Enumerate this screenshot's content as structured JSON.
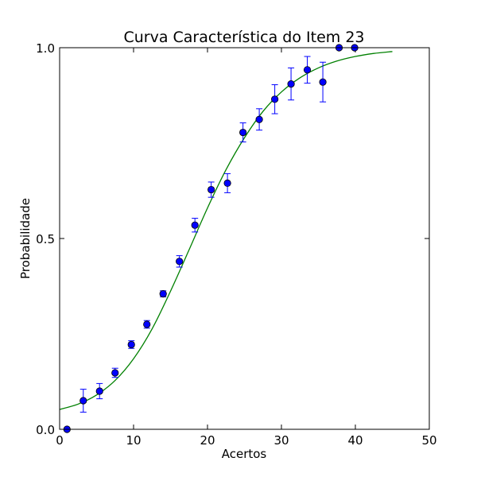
{
  "chart_data": {
    "type": "scatter",
    "title": "Curva Característica do Item 23",
    "xlabel": "Acertos",
    "ylabel": "Probabilidade",
    "xlim": [
      0,
      50
    ],
    "ylim": [
      0,
      1
    ],
    "x_ticks": [
      {
        "value": 0,
        "label": "0"
      },
      {
        "value": 10,
        "label": "10"
      },
      {
        "value": 20,
        "label": "20"
      },
      {
        "value": 30,
        "label": "30"
      },
      {
        "value": 40,
        "label": "40"
      },
      {
        "value": 50,
        "label": "50"
      }
    ],
    "y_ticks": [
      {
        "value": 0.0,
        "label": "0.0"
      },
      {
        "value": 0.5,
        "label": "0.5"
      },
      {
        "value": 1.0,
        "label": "1.0"
      }
    ],
    "grid": false,
    "series": [
      {
        "kind": "points_with_error_bars",
        "color": "#0000ff",
        "points": [
          {
            "x": 1.0,
            "y": 0.0,
            "err": 0.0
          },
          {
            "x": 3.2,
            "y": 0.075,
            "err": 0.03
          },
          {
            "x": 5.4,
            "y": 0.1,
            "err": 0.02
          },
          {
            "x": 7.5,
            "y": 0.148,
            "err": 0.012
          },
          {
            "x": 9.7,
            "y": 0.222,
            "err": 0.01
          },
          {
            "x": 11.8,
            "y": 0.275,
            "err": 0.01
          },
          {
            "x": 14.0,
            "y": 0.355,
            "err": 0.008
          },
          {
            "x": 16.2,
            "y": 0.44,
            "err": 0.015
          },
          {
            "x": 18.3,
            "y": 0.535,
            "err": 0.018
          },
          {
            "x": 20.5,
            "y": 0.628,
            "err": 0.02
          },
          {
            "x": 22.7,
            "y": 0.645,
            "err": 0.025
          },
          {
            "x": 24.8,
            "y": 0.778,
            "err": 0.025
          },
          {
            "x": 27.0,
            "y": 0.812,
            "err": 0.028
          },
          {
            "x": 29.1,
            "y": 0.865,
            "err": 0.038
          },
          {
            "x": 31.3,
            "y": 0.905,
            "err": 0.042
          },
          {
            "x": 33.5,
            "y": 0.942,
            "err": 0.035
          },
          {
            "x": 35.6,
            "y": 0.91,
            "err": 0.052
          },
          {
            "x": 37.8,
            "y": 1.0,
            "err": 0.0
          },
          {
            "x": 39.9,
            "y": 1.0,
            "err": 0.0
          }
        ]
      },
      {
        "kind": "fitted_curve",
        "color": "#008000",
        "points": [
          {
            "x": 0,
            "y": 0.052
          },
          {
            "x": 2.5,
            "y": 0.066
          },
          {
            "x": 5,
            "y": 0.09
          },
          {
            "x": 7.5,
            "y": 0.128
          },
          {
            "x": 10,
            "y": 0.185
          },
          {
            "x": 12.5,
            "y": 0.263
          },
          {
            "x": 15,
            "y": 0.362
          },
          {
            "x": 17.5,
            "y": 0.47
          },
          {
            "x": 20,
            "y": 0.58
          },
          {
            "x": 22.5,
            "y": 0.68
          },
          {
            "x": 25,
            "y": 0.764
          },
          {
            "x": 27.5,
            "y": 0.833
          },
          {
            "x": 30,
            "y": 0.884
          },
          {
            "x": 32.5,
            "y": 0.921
          },
          {
            "x": 35,
            "y": 0.947
          },
          {
            "x": 37.5,
            "y": 0.965
          },
          {
            "x": 40,
            "y": 0.977
          },
          {
            "x": 42.5,
            "y": 0.985
          },
          {
            "x": 45,
            "y": 0.99
          }
        ]
      }
    ]
  }
}
